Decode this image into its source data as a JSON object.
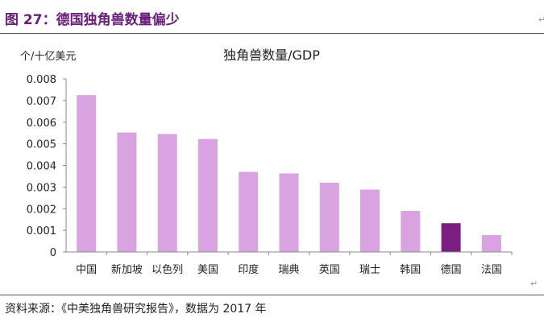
{
  "figure": {
    "title": "图 27：德国独角兽数量偏少",
    "source": "资料来源：《中美独角兽研究报告》，数据为 2017 年",
    "para_mark": "↵"
  },
  "colors": {
    "bar": "#d8a3e0",
    "highlight": "#7a1f7f",
    "title": "#6a1e7a",
    "axis": "#888888"
  },
  "chart_data": {
    "type": "bar",
    "title": "独角兽数量/GDP",
    "ylabel": "个/十亿美元",
    "xlabel": "",
    "categories": [
      "中国",
      "新加坡",
      "以色列",
      "美国",
      "印度",
      "瑞典",
      "英国",
      "瑞士",
      "韩国",
      "德国",
      "法国"
    ],
    "values": [
      0.00725,
      0.00552,
      0.00545,
      0.00522,
      0.0037,
      0.00363,
      0.0032,
      0.00288,
      0.0019,
      0.00133,
      0.00078
    ],
    "highlight_category": "德国",
    "ylim": [
      0,
      0.008
    ],
    "yticks": [
      "0",
      "0.001",
      "0.002",
      "0.003",
      "0.004",
      "0.005",
      "0.006",
      "0.007",
      "0.008"
    ],
    "grid": false,
    "legend": false
  }
}
